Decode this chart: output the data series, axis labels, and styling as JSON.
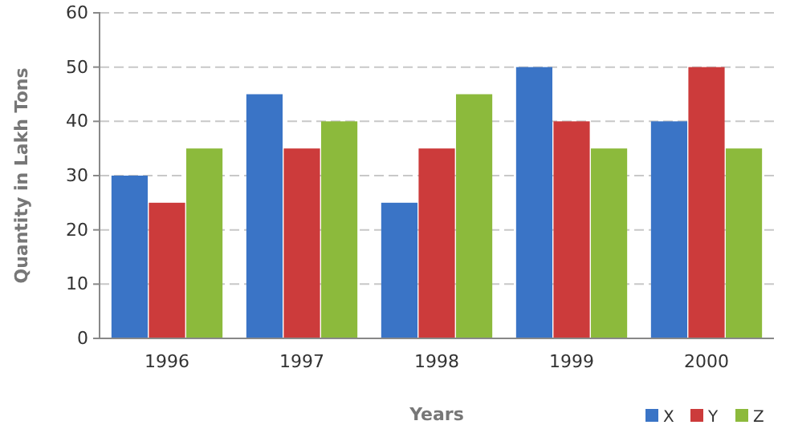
{
  "chart_data": {
    "type": "bar",
    "xlabel": "Years",
    "ylabel": "Quantity in Lakh Tons",
    "categories": [
      "1996",
      "1997",
      "1998",
      "1999",
      "2000"
    ],
    "series": [
      {
        "name": "X",
        "color": "#3a74c6",
        "values": [
          30,
          45,
          25,
          50,
          40
        ]
      },
      {
        "name": "Y",
        "color": "#cc3b3b",
        "values": [
          25,
          35,
          35,
          40,
          50
        ]
      },
      {
        "name": "Z",
        "color": "#8cba3c",
        "values": [
          35,
          40,
          45,
          35,
          35
        ]
      }
    ],
    "ylim": [
      0,
      60
    ],
    "yticks": [
      0,
      10,
      20,
      30,
      40,
      50,
      60
    ],
    "grid": "y",
    "legend": "bottom right"
  }
}
